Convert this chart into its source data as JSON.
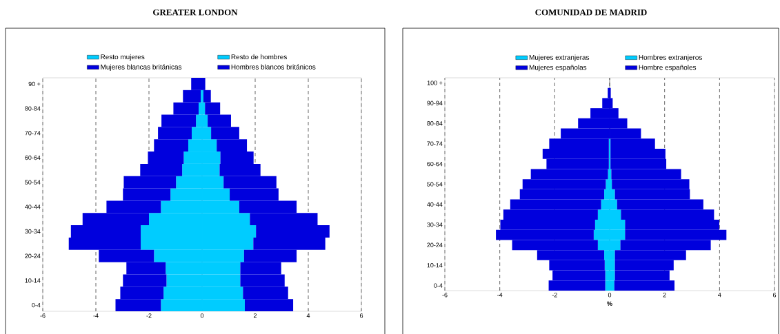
{
  "chart_data": [
    {
      "type": "bar",
      "orientation": "horizontal",
      "stacked": true,
      "title": "GREATER LONDON",
      "categories": [
        "90 +",
        null,
        "80-84",
        null,
        "70-74",
        null,
        "60-64",
        null,
        "50-54",
        null,
        "40-44",
        null,
        "30-34",
        null,
        "20-24",
        null,
        "10-14",
        null,
        "0-4"
      ],
      "series": [
        {
          "name": "Resto mujeres",
          "color": "#00ccff",
          "values": [
            null,
            -0.05,
            -0.13,
            -0.23,
            -0.39,
            -0.52,
            -0.69,
            -0.75,
            -0.98,
            -1.19,
            -1.55,
            -2.0,
            -2.31,
            -2.31,
            -1.81,
            -1.37,
            -1.34,
            -1.45,
            -1.55
          ]
        },
        {
          "name": "Resto de hombres",
          "color": "#00ccff",
          "values": [
            null,
            0.05,
            0.11,
            0.21,
            0.34,
            0.55,
            0.69,
            0.66,
            0.81,
            1.04,
            1.4,
            1.8,
            2.03,
            1.93,
            1.58,
            1.44,
            1.44,
            1.54,
            1.61
          ]
        },
        {
          "name": "Mujeres blancas británicas",
          "color": "#0000dd",
          "values": [
            -0.41,
            -0.67,
            -0.95,
            -1.3,
            -1.27,
            -1.29,
            -1.35,
            -1.58,
            -1.97,
            -1.79,
            -2.05,
            -2.5,
            -2.63,
            -2.71,
            -2.08,
            -1.48,
            -1.64,
            -1.63,
            -1.71
          ]
        },
        {
          "name": "Hombres blancos británicos",
          "color": "#0000dd",
          "values": [
            0.12,
            0.28,
            0.57,
            0.88,
            1.06,
            1.14,
            1.25,
            1.54,
            1.99,
            1.84,
            2.16,
            2.55,
            2.77,
            2.71,
            1.98,
            1.54,
            1.67,
            1.7,
            1.82
          ]
        }
      ],
      "xlim": [
        -6,
        6
      ],
      "xticks": [
        -6,
        -4,
        -2,
        0,
        2,
        4,
        6
      ],
      "grid": "x",
      "legend": "top"
    },
    {
      "type": "bar",
      "orientation": "horizontal",
      "stacked": true,
      "title": "COMUNIDAD DE MADRID",
      "xlabel": "%",
      "categories": [
        "100 +",
        null,
        "90-94",
        null,
        "80-84",
        null,
        "70-74",
        null,
        "60-64",
        null,
        "50-54",
        null,
        "40-44",
        null,
        "30-34",
        null,
        "20-24",
        null,
        "10-14",
        null,
        "0-4"
      ],
      "series": [
        {
          "name": "Mujeres extranjeras",
          "color": "#00ccff",
          "values": [
            null,
            null,
            null,
            null,
            null,
            null,
            -0.03,
            -0.03,
            -0.03,
            -0.06,
            -0.14,
            -0.2,
            -0.31,
            -0.43,
            -0.53,
            -0.58,
            -0.43,
            -0.2,
            -0.18,
            -0.16,
            -0.16
          ]
        },
        {
          "name": "Hombres extranjeros",
          "color": "#00ccff",
          "values": [
            null,
            null,
            null,
            null,
            null,
            null,
            0.03,
            0.03,
            0.03,
            0.06,
            0.08,
            0.19,
            0.27,
            0.41,
            0.56,
            0.56,
            0.39,
            0.19,
            0.19,
            0.19,
            0.17
          ]
        },
        {
          "name": "Mujeres españolas",
          "color": "#0000dd",
          "values": [
            null,
            -0.07,
            -0.27,
            -0.7,
            -1.15,
            -1.78,
            -2.17,
            -2.41,
            -2.27,
            -2.81,
            -3.03,
            -3.07,
            -3.31,
            -3.44,
            -3.45,
            -3.56,
            -3.12,
            -2.44,
            -2.02,
            -1.92,
            -2.06
          ]
        },
        {
          "name": "Hombre españoles",
          "color": "#0000dd",
          "values": [
            null,
            0.04,
            0.11,
            0.32,
            0.64,
            1.14,
            1.62,
            2.0,
            2.03,
            2.54,
            2.82,
            2.73,
            3.14,
            3.39,
            3.43,
            3.69,
            3.29,
            2.59,
            2.14,
            1.99,
            2.19
          ]
        }
      ],
      "xlim": [
        -6,
        6
      ],
      "xticks": [
        -6,
        -4,
        -2,
        0,
        2,
        4,
        6
      ],
      "grid": "x",
      "legend": "top"
    }
  ]
}
